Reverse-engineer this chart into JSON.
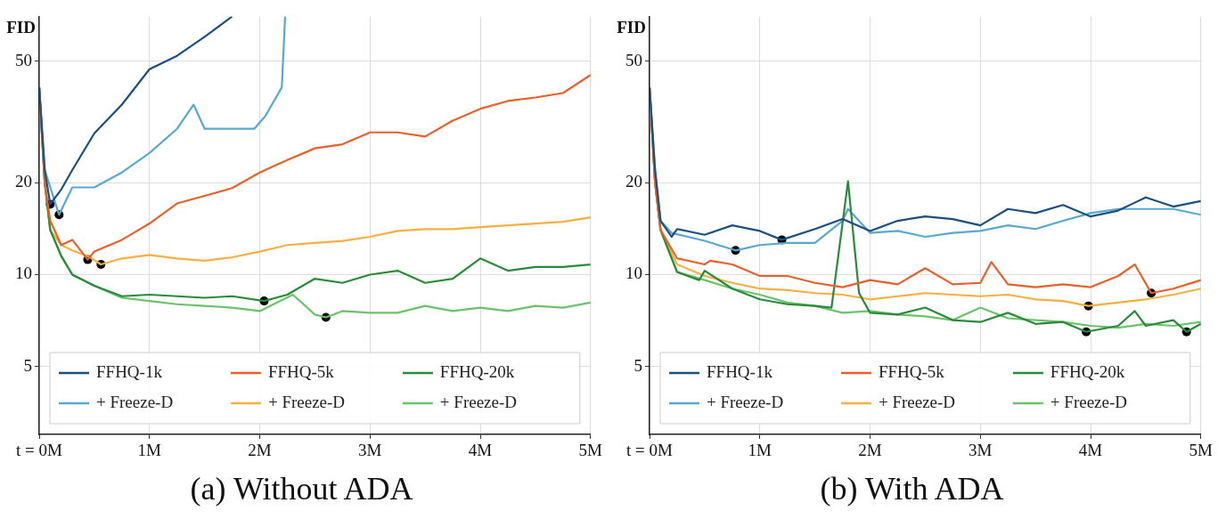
{
  "chart_data": [
    {
      "type": "line",
      "title": "(a) Without ADA",
      "ylabel": "FID",
      "log": "y",
      "grid": true,
      "legend": "bottom",
      "xlim": [
        0,
        5
      ],
      "xticks": [
        {
          "value": 0,
          "label": "t = 0M"
        },
        {
          "value": 1,
          "label": "1M"
        },
        {
          "value": 2,
          "label": "2M"
        },
        {
          "value": 3,
          "label": "3M"
        },
        {
          "value": 4,
          "label": "4M"
        },
        {
          "value": 5,
          "label": "5M"
        }
      ],
      "ylim": [
        3,
        70
      ],
      "yticks": [
        5,
        10,
        20,
        50
      ],
      "series": [
        {
          "name": "FFHQ-1k",
          "color": "#1b4f80",
          "x": [
            0,
            0.05,
            0.1,
            0.2,
            0.3,
            0.5,
            0.75,
            1,
            1.25,
            1.5,
            1.75
          ],
          "values": [
            41,
            22,
            17,
            19,
            22,
            29,
            36,
            47,
            52,
            60,
            70
          ]
        },
        {
          "name": "FFHQ-5k",
          "color": "#e8612c",
          "x": [
            0,
            0.05,
            0.1,
            0.2,
            0.3,
            0.44,
            0.5,
            0.75,
            1,
            1.25,
            1.5,
            1.75,
            2,
            2.25,
            2.5,
            2.75,
            3,
            3.25,
            3.5,
            3.75,
            4,
            4.25,
            4.5,
            4.75,
            5
          ],
          "values": [
            41,
            20,
            15,
            12.5,
            13,
            11.2,
            11.9,
            13,
            14.7,
            17.1,
            18.1,
            19.2,
            21.6,
            23.7,
            25.9,
            26.7,
            29.2,
            29.2,
            28.3,
            31.9,
            34.9,
            37,
            38,
            39.3,
            45
          ]
        },
        {
          "name": "FFHQ-20k",
          "color": "#2a8a3a",
          "x": [
            0,
            0.05,
            0.1,
            0.2,
            0.3,
            0.5,
            0.75,
            1,
            1.25,
            1.5,
            1.75,
            2.04,
            2.25,
            2.5,
            2.75,
            3,
            3.25,
            3.5,
            3.75,
            4,
            4.25,
            4.5,
            4.75,
            5
          ],
          "values": [
            41,
            20,
            14,
            11.5,
            10,
            9.2,
            8.5,
            8.6,
            8.5,
            8.4,
            8.5,
            8.2,
            8.6,
            9.7,
            9.4,
            10,
            10.3,
            9.4,
            9.7,
            11.3,
            10.3,
            10.6,
            10.6,
            10.8
          ]
        },
        {
          "name": "+ Freeze-D",
          "color": "#5aa7cf",
          "x": [
            0,
            0.05,
            0.18,
            0.3,
            0.5,
            0.75,
            1,
            1.25,
            1.4,
            1.5,
            1.75,
            1.95,
            2.05,
            2.2,
            2.23
          ],
          "values": [
            41,
            22,
            15.7,
            19.3,
            19.3,
            21.6,
            25,
            30,
            36,
            30,
            30,
            30,
            33,
            41,
            70
          ]
        },
        {
          "name": "+ Freeze-D",
          "color": "#f5b041",
          "x": [
            0,
            0.05,
            0.1,
            0.2,
            0.3,
            0.44,
            0.56,
            0.75,
            1,
            1.25,
            1.5,
            1.75,
            2,
            2.25,
            2.5,
            2.75,
            3,
            3.25,
            3.5,
            3.75,
            4,
            4.25,
            4.5,
            4.75,
            5
          ],
          "values": [
            41,
            20,
            14,
            12.5,
            12,
            11.5,
            10.8,
            11.3,
            11.6,
            11.3,
            11.1,
            11.4,
            11.9,
            12.5,
            12.7,
            12.9,
            13.3,
            13.9,
            14.1,
            14.1,
            14.3,
            14.5,
            14.7,
            14.9,
            15.4
          ]
        },
        {
          "name": "+ Freeze-D",
          "color": "#6cc26a",
          "x": [
            0,
            0.05,
            0.1,
            0.2,
            0.3,
            0.5,
            0.75,
            1,
            1.25,
            1.5,
            1.75,
            2,
            2.3,
            2.5,
            2.6,
            2.75,
            3,
            3.25,
            3.5,
            3.75,
            4,
            4.25,
            4.5,
            4.75,
            5
          ],
          "values": [
            41,
            20,
            14,
            11.5,
            10,
            9.2,
            8.4,
            8.2,
            8,
            7.9,
            7.8,
            7.6,
            8.6,
            7.4,
            7.25,
            7.6,
            7.5,
            7.5,
            7.9,
            7.6,
            7.8,
            7.6,
            7.9,
            7.8,
            8.1
          ]
        },
        {
          "type": "scatter",
          "color": "#000000",
          "x": [
            0.1,
            0.18,
            0.44,
            0.56,
            2.04,
            2.6
          ],
          "values": [
            17,
            15.7,
            11.2,
            10.8,
            8.2,
            7.25
          ]
        }
      ]
    },
    {
      "type": "line",
      "title": "(b) With ADA",
      "ylabel": "FID",
      "log": "y",
      "grid": true,
      "legend": "bottom",
      "xlim": [
        0,
        5
      ],
      "xticks": [
        {
          "value": 0,
          "label": "t = 0M"
        },
        {
          "value": 1,
          "label": "1M"
        },
        {
          "value": 2,
          "label": "2M"
        },
        {
          "value": 3,
          "label": "3M"
        },
        {
          "value": 4,
          "label": "4M"
        },
        {
          "value": 5,
          "label": "5M"
        }
      ],
      "ylim": [
        3,
        70
      ],
      "yticks": [
        5,
        10,
        20,
        50
      ],
      "series": [
        {
          "name": "FFHQ-1k",
          "color": "#1b4f80",
          "x": [
            0,
            0.05,
            0.1,
            0.2,
            0.25,
            0.5,
            0.75,
            1,
            1.2,
            1.5,
            1.75,
            2,
            2.25,
            2.5,
            2.75,
            3,
            3.25,
            3.5,
            3.75,
            4,
            4.25,
            4.5,
            4.75,
            5
          ],
          "values": [
            41,
            22,
            15,
            13.3,
            14.1,
            13.5,
            14.5,
            13.9,
            13,
            14.1,
            15.2,
            13.9,
            15,
            15.5,
            15.2,
            14.5,
            16.4,
            15.9,
            16.9,
            15.5,
            16.2,
            17.9,
            16.7,
            17.4
          ]
        },
        {
          "name": "FFHQ-5k",
          "color": "#e8612c",
          "x": [
            0,
            0.05,
            0.1,
            0.25,
            0.5,
            0.55,
            0.75,
            1,
            1.25,
            1.5,
            1.75,
            2,
            2.25,
            2.5,
            2.75,
            3,
            3.1,
            3.25,
            3.5,
            3.75,
            4,
            4.25,
            4.4,
            4.55,
            4.75,
            5
          ],
          "values": [
            41,
            20,
            14,
            11.3,
            10.8,
            11.1,
            10.8,
            9.9,
            9.9,
            9.4,
            9.1,
            9.6,
            9.3,
            10.5,
            9.3,
            9.4,
            11,
            9.3,
            9.1,
            9.3,
            9.1,
            9.9,
            10.8,
            8.7,
            9,
            9.6
          ]
        },
        {
          "name": "FFHQ-20k",
          "color": "#2a8a3a",
          "x": [
            0,
            0.05,
            0.1,
            0.25,
            0.45,
            0.5,
            0.75,
            1,
            1.25,
            1.5,
            1.65,
            1.8,
            1.9,
            2,
            2.25,
            2.5,
            2.75,
            3,
            3.25,
            3.5,
            3.75,
            3.96,
            4.25,
            4.4,
            4.5,
            4.75,
            4.87,
            5
          ],
          "values": [
            41,
            20,
            14,
            10.2,
            9.6,
            10.3,
            9,
            8.3,
            8,
            7.9,
            7.8,
            20.2,
            8.7,
            7.5,
            7.4,
            7.8,
            7.1,
            7,
            7.5,
            6.9,
            7,
            6.5,
            6.8,
            7.6,
            6.8,
            7.1,
            6.5,
            6.9
          ]
        },
        {
          "name": "+ Freeze-D",
          "color": "#5aa7cf",
          "x": [
            0,
            0.05,
            0.1,
            0.2,
            0.5,
            0.78,
            1,
            1.25,
            1.5,
            1.75,
            1.8,
            2,
            2.25,
            2.5,
            2.75,
            3,
            3.25,
            3.5,
            3.75,
            4,
            4.25,
            4.5,
            4.75,
            5
          ],
          "values": [
            41,
            22,
            15,
            13.7,
            12.9,
            12,
            12.5,
            12.7,
            12.7,
            15,
            16.4,
            13.7,
            13.9,
            13.3,
            13.7,
            13.9,
            14.5,
            14.1,
            15,
            15.9,
            16.4,
            16.4,
            16.4,
            15.7
          ]
        },
        {
          "name": "+ Freeze-D",
          "color": "#f5b041",
          "x": [
            0,
            0.05,
            0.1,
            0.25,
            0.5,
            0.75,
            1,
            1.25,
            1.5,
            1.75,
            2,
            2.25,
            2.5,
            2.75,
            3,
            3.25,
            3.5,
            3.75,
            3.98,
            4.25,
            4.5,
            4.75,
            5
          ],
          "values": [
            41,
            20,
            14,
            10.8,
            9.9,
            9.4,
            9,
            8.9,
            8.7,
            8.6,
            8.3,
            8.5,
            8.7,
            8.6,
            8.5,
            8.6,
            8.3,
            8.2,
            7.9,
            8.1,
            8.3,
            8.6,
            9
          ]
        },
        {
          "name": "+ Freeze-D",
          "color": "#6cc26a",
          "x": [
            0,
            0.05,
            0.1,
            0.25,
            0.5,
            0.75,
            1,
            1.25,
            1.5,
            1.75,
            2,
            2.25,
            2.5,
            2.75,
            3,
            3.25,
            3.5,
            3.75,
            4,
            4.25,
            4.5,
            4.75,
            5
          ],
          "values": [
            41,
            20,
            14,
            10.2,
            9.6,
            9,
            8.6,
            8.1,
            7.9,
            7.5,
            7.6,
            7.4,
            7.3,
            7.1,
            7.8,
            7.2,
            7.1,
            7,
            6.8,
            6.7,
            6.9,
            6.8,
            7
          ]
        },
        {
          "type": "scatter",
          "color": "#000000",
          "x": [
            0.78,
            1.2,
            3.96,
            3.98,
            4.55,
            4.87
          ],
          "values": [
            12,
            13,
            6.5,
            7.9,
            8.7,
            6.5
          ]
        }
      ]
    }
  ]
}
